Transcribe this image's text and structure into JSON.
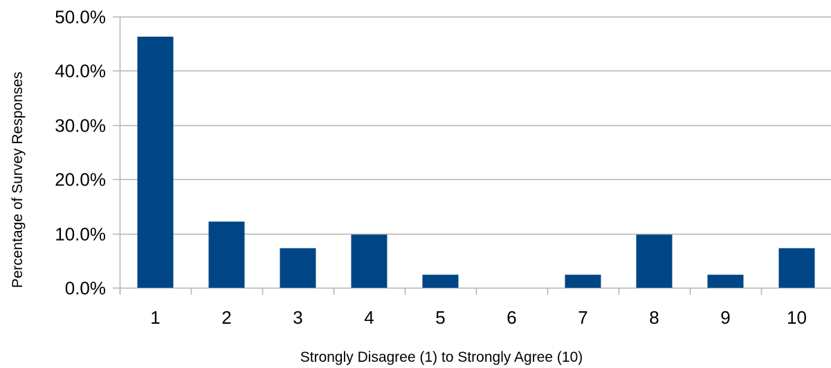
{
  "chart_data": {
    "type": "bar",
    "title": "",
    "xlabel": "Strongly Disagree (1) to Strongly Agree (10)",
    "ylabel": "Percentage of Survey Responses",
    "categories": [
      "1",
      "2",
      "3",
      "4",
      "5",
      "6",
      "7",
      "8",
      "9",
      "10"
    ],
    "series": [
      {
        "values": [
          46.3,
          12.2,
          7.3,
          9.8,
          2.4,
          0.0,
          2.4,
          9.8,
          2.4,
          7.3
        ]
      }
    ],
    "ylim": [
      0,
      50
    ],
    "yticks": [
      0,
      10,
      20,
      30,
      40,
      50
    ],
    "ytick_labels": [
      "0.0%",
      "10.0%",
      "20.0%",
      "30.0%",
      "40.0%",
      "50.0%"
    ],
    "grid": "horizontal",
    "legend": "none",
    "colors": {
      "bar": "#004586",
      "grid": "#b3b3b3",
      "axis": "#b3b3b3",
      "text": "#000000"
    }
  }
}
